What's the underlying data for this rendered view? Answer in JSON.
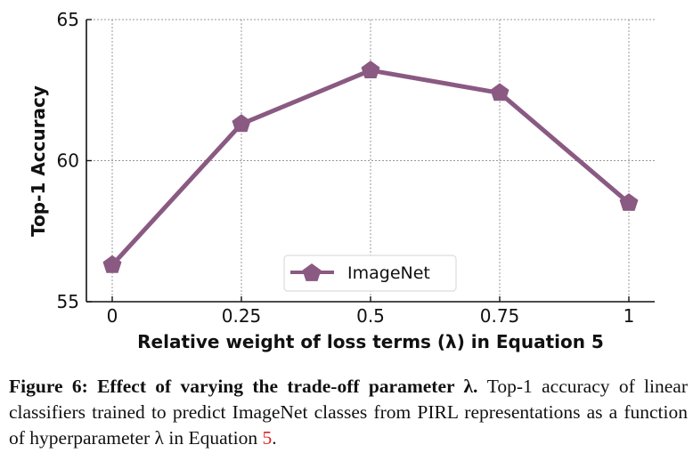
{
  "chart_data": {
    "type": "line",
    "x": [
      0,
      0.25,
      0.5,
      0.75,
      1
    ],
    "x_tick_labels": [
      "0",
      "0.25",
      "0.5",
      "0.75",
      "1"
    ],
    "series": [
      {
        "name": "ImageNet",
        "values": [
          56.3,
          61.3,
          63.2,
          62.4,
          58.5
        ],
        "color": "#8a5a83",
        "marker": "pentagon"
      }
    ],
    "xlabel": "Relative weight of loss terms (λ) in Equation 5",
    "ylabel": "Top-1 Accuracy",
    "yticks": [
      55,
      60,
      65
    ],
    "y_tick_labels": [
      "55",
      "60",
      "65"
    ],
    "xlim": [
      -0.05,
      1.05
    ],
    "ylim": [
      55,
      65
    ],
    "grid": true,
    "legend": "bottom-center"
  },
  "caption": {
    "label": "Figure 6: Effect of varying the trade-off parameter λ.",
    "text_before_ref": " Top-1 accuracy of linear classifiers trained to predict ImageNet classes from PIRL representations as a function of hyperparameter λ in Equation ",
    "ref": "5",
    "text_after_ref": "."
  }
}
